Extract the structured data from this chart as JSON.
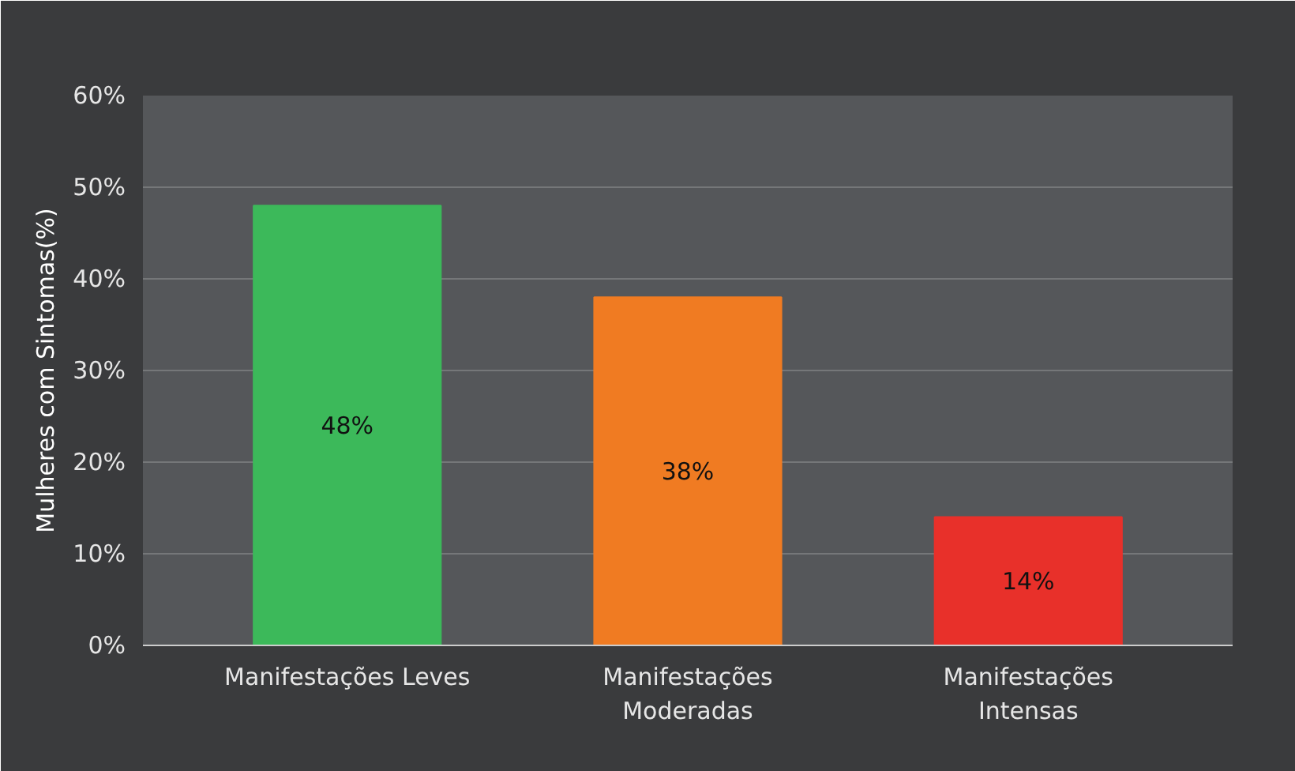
{
  "chart_data": {
    "type": "bar",
    "ylabel": "Mulheres com Sintomas(%)",
    "categories": [
      "Manifestações Leves",
      "Manifestações\nModeradas",
      "Manifestações\nIntensas"
    ],
    "values": [
      48,
      38,
      14
    ],
    "colors": [
      "#3cb95a",
      "#f07b22",
      "#e8302a"
    ],
    "value_labels": [
      "48%",
      "38%",
      "14%"
    ],
    "ylim": [
      0,
      60
    ],
    "yticks": [
      {
        "value": 0,
        "label": "0%"
      },
      {
        "value": 10,
        "label": "10%"
      },
      {
        "value": 20,
        "label": "20%"
      },
      {
        "value": 30,
        "label": "30%"
      },
      {
        "value": 40,
        "label": "40%"
      },
      {
        "value": 50,
        "label": "50%"
      },
      {
        "value": 60,
        "label": "60%"
      }
    ],
    "grid": "y"
  }
}
